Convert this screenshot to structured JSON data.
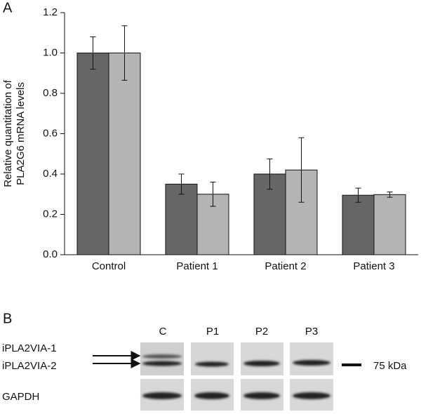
{
  "panel_labels": [
    "A",
    "B"
  ],
  "chart_data": {
    "type": "bar",
    "ylabel": [
      "Relative quantitation of",
      "PLA2G6 mRNA levels"
    ],
    "categories": [
      "Control",
      "Patient 1",
      "Patient 2",
      "Patient 3"
    ],
    "series": [
      {
        "color": "#666666",
        "values": [
          1.0,
          0.35,
          0.4,
          0.295
        ],
        "errors": [
          0.08,
          0.05,
          0.075,
          0.035
        ]
      },
      {
        "color": "#b4b4b4",
        "values": [
          1.0,
          0.3,
          0.42,
          0.298
        ],
        "errors": [
          0.135,
          0.06,
          0.16,
          0.013
        ]
      }
    ],
    "ylim": [
      0,
      1.2
    ],
    "yticks": [
      {
        "value": 0,
        "label": "0.0"
      },
      0.2,
      0.4,
      0.6,
      0.8,
      {
        "value": 1,
        "label": "1.0"
      },
      1.2
    ]
  },
  "blot": {
    "lanes": [
      "C",
      "P1",
      "P2",
      "P3"
    ],
    "bands": [
      "iPLA2VIA-1",
      "iPLA2VIA-2"
    ],
    "loading_control": "GAPDH",
    "marker": "75 kDa"
  }
}
